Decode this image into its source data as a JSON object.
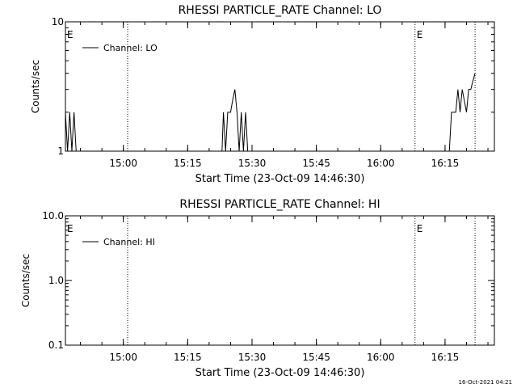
{
  "footer_text": "16-Oct-2021 04:21",
  "chart_data": [
    {
      "type": "line",
      "title": "RHESSI PARTICLE_RATE Channel: LO",
      "ylabel": "Counts/sec",
      "xlabel": "Start Time (23-Oct-09 14:46:30)",
      "x_unit": "minutes",
      "xlim": [
        "14:46:30",
        "16:26:30"
      ],
      "ylim": [
        1,
        10
      ],
      "yscale": "log",
      "x_ticks": [
        "15:00",
        "15:15",
        "15:30",
        "15:45",
        "16:00",
        "16:15"
      ],
      "y_ticks": [
        "1",
        "10"
      ],
      "legend": {
        "position": "top-left",
        "entries": [
          "Channel: LO"
        ]
      },
      "event_markers": [
        {
          "x": "15:01",
          "label": ""
        },
        {
          "x": "16:08",
          "label": "E"
        },
        {
          "x": "16:22",
          "label": ""
        },
        {
          "x": "14:46:30",
          "label": "E"
        }
      ],
      "series": [
        {
          "name": "Channel: LO",
          "points": [
            [
              "14:46:30",
              2
            ],
            [
              "14:47:00",
              1
            ],
            [
              "14:47:30",
              2
            ],
            [
              "14:48:00",
              1
            ],
            [
              "14:48:30",
              2
            ],
            [
              "14:49:00",
              1
            ],
            [
              "15:23:00",
              1
            ],
            [
              "15:23:20",
              2
            ],
            [
              "15:23:50",
              1
            ],
            [
              "15:24:20",
              2
            ],
            [
              "15:25:00",
              2
            ],
            [
              "15:25:30",
              2.5
            ],
            [
              "15:26:00",
              3
            ],
            [
              "15:26:30",
              2
            ],
            [
              "15:27:00",
              1
            ],
            [
              "15:27:30",
              2
            ],
            [
              "15:28:00",
              1
            ],
            [
              "15:28:30",
              2
            ],
            [
              "15:29:00",
              1
            ],
            [
              "16:16:00",
              1
            ],
            [
              "16:16:30",
              2
            ],
            [
              "16:17:30",
              2
            ],
            [
              "16:18:00",
              3
            ],
            [
              "16:18:30",
              2
            ],
            [
              "16:19:00",
              3
            ],
            [
              "16:20:00",
              2
            ],
            [
              "16:20:30",
              3
            ],
            [
              "16:21:00",
              3
            ],
            [
              "16:21:30",
              3.5
            ],
            [
              "16:22:00",
              4
            ]
          ]
        }
      ]
    },
    {
      "type": "line",
      "title": "RHESSI PARTICLE_RATE Channel: HI",
      "ylabel": "Counts/sec",
      "xlabel": "Start Time (23-Oct-09 14:46:30)",
      "x_unit": "minutes",
      "xlim": [
        "14:46:30",
        "16:26:30"
      ],
      "ylim": [
        0.1,
        10
      ],
      "yscale": "log",
      "x_ticks": [
        "15:00",
        "15:15",
        "15:30",
        "15:45",
        "16:00",
        "16:15"
      ],
      "y_ticks": [
        "0.1",
        "1.0",
        "10.0"
      ],
      "legend": {
        "position": "top-left",
        "entries": [
          "Channel: HI"
        ]
      },
      "event_markers": [
        {
          "x": "15:01",
          "label": ""
        },
        {
          "x": "16:08",
          "label": "E"
        },
        {
          "x": "16:22",
          "label": ""
        },
        {
          "x": "14:46:30",
          "label": "E"
        }
      ],
      "series": [
        {
          "name": "Channel: HI",
          "points": []
        }
      ]
    }
  ]
}
